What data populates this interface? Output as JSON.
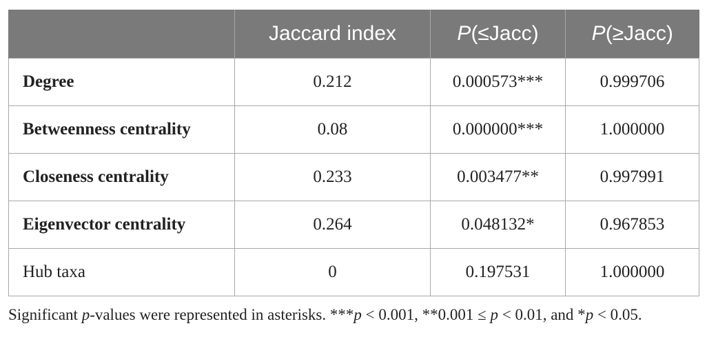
{
  "table": {
    "headers": [
      "",
      "Jaccard index",
      "P(≤Jacc)",
      "P(≥Jacc)"
    ],
    "rows": [
      {
        "label": "Degree",
        "jaccard": "0.212",
        "p_le": "0.000573***",
        "p_ge": "0.999706",
        "bold": true
      },
      {
        "label": "Betweenness centrality",
        "jaccard": "0.08",
        "p_le": "0.000000***",
        "p_ge": "1.000000",
        "bold": true
      },
      {
        "label": "Closeness centrality",
        "jaccard": "0.233",
        "p_le": "0.003477**",
        "p_ge": "0.997991",
        "bold": true
      },
      {
        "label": "Eigenvector centrality",
        "jaccard": "0.264",
        "p_le": "0.048132*",
        "p_ge": "0.967853",
        "bold": true
      },
      {
        "label": "Hub taxa",
        "jaccard": "0",
        "p_le": "0.197531",
        "p_ge": "1.000000",
        "bold": false
      }
    ]
  },
  "footnote": {
    "text": "Significant p-values were represented in asterisks. ***p < 0.001, **0.001 ≤ p < 0.01, and *p < 0.05."
  },
  "colors": {
    "header_bg": "#7a7a7a",
    "header_text": "#ffffff",
    "grid": "#a8a8a8"
  }
}
